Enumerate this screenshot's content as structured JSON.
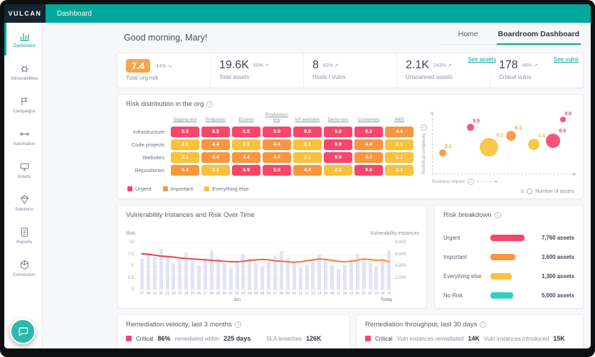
{
  "app": {
    "logo": "VULCAN",
    "topbar_title": "Dashboard"
  },
  "icons": {
    "info": "i",
    "trend_up": "↗",
    "trend_down": "↘"
  },
  "colors": {
    "accent": "#00a79b",
    "urgent": "#f9456b",
    "important": "#f8963d",
    "everything_else": "#f7c23c",
    "no_risk": "#2fd0c2",
    "bar_fill": "#e3e3f5",
    "risk_line_start": "#e8324d",
    "risk_line_end": "#f6903d",
    "kpi_highlight": "#f5a54a"
  },
  "sidebar": {
    "items": [
      {
        "label": "Dashboard",
        "icon": "dashboard-icon",
        "active": true
      },
      {
        "label": "Vulnerabilities",
        "icon": "vulnerabilities-icon",
        "active": false
      },
      {
        "label": "Campaigns",
        "icon": "campaigns-icon",
        "active": false
      },
      {
        "label": "Automation",
        "icon": "automation-icon",
        "active": false
      },
      {
        "label": "Assets",
        "icon": "assets-icon",
        "active": false
      },
      {
        "label": "Solutions",
        "icon": "solutions-icon",
        "active": false
      },
      {
        "label": "Reports",
        "icon": "reports-icon",
        "active": false
      },
      {
        "label": "Connectors",
        "icon": "connectors-icon",
        "active": false
      }
    ]
  },
  "header": {
    "greeting": "Good morning, Mary!",
    "tabs": [
      {
        "label": "Home",
        "active": false
      },
      {
        "label": "Boardroom Dashboard",
        "active": true
      }
    ],
    "links": {
      "see_assets": "See assets",
      "see_vulns": "See vulns"
    }
  },
  "kpis": [
    {
      "value": "7.4",
      "delta": "-14%",
      "trend": "down",
      "label": "Total org risk",
      "highlight": true
    },
    {
      "value": "19.6K",
      "delta": "80%",
      "trend": "up",
      "label": "Total assets",
      "highlight": false
    },
    {
      "value": "8",
      "delta": "60%",
      "trend": "up",
      "label": "Hosts / Vulns",
      "highlight": false
    },
    {
      "value": "2.1K",
      "delta": "343%",
      "trend": "up",
      "label": "Unscanned assets",
      "highlight": false
    },
    {
      "value": "178",
      "delta": "48%",
      "trend": "up",
      "label": "Critical vulns",
      "highlight": false
    }
  ],
  "risk_distribution": {
    "title": "Risk distribution in the org",
    "columns": [
      "Staging env",
      "Endpoints",
      "Ecomm",
      "Production-env",
      "NY websites",
      "Demo-env",
      "Customers",
      "AWS"
    ],
    "rows": [
      "Infrastructure",
      "Code projects",
      "Websites",
      "Repositories"
    ],
    "values": [
      [
        "9.9",
        "9.9",
        "9.5",
        "9.9",
        "9.9",
        "9.9",
        "9.9",
        "4.4"
      ],
      [
        "2.1",
        "4.4",
        "2.1",
        "4.4",
        "2.1",
        "9.9",
        "4.4",
        "2.1"
      ],
      [
        "2.1",
        "4.4",
        "4.4",
        "4.4",
        "2.1",
        "9.9",
        "4.4",
        "2.1"
      ],
      [
        "4.4",
        "2.1",
        "9.9",
        "9.9",
        "4.4",
        "2.1",
        "9.9",
        "2.1"
      ]
    ],
    "levels": [
      [
        "u",
        "u",
        "u",
        "u",
        "u",
        "u",
        "u",
        "i"
      ],
      [
        "e",
        "i",
        "e",
        "i",
        "e",
        "u",
        "i",
        "e"
      ],
      [
        "e",
        "i",
        "i",
        "i",
        "e",
        "u",
        "i",
        "e"
      ],
      [
        "i",
        "e",
        "u",
        "u",
        "i",
        "e",
        "u",
        "e"
      ]
    ],
    "legend": [
      {
        "label": "Urgent",
        "level": "u"
      },
      {
        "label": "Important",
        "level": "i"
      },
      {
        "label": "Everything else",
        "level": "e"
      }
    ]
  },
  "bubble_chart": {
    "xlabel": "Business impact",
    "ylabel": "Technical complexity",
    "legend_label": "Number of assets",
    "bubbles": [
      {
        "label": "2.1",
        "x": 7,
        "y": 35,
        "r": 5,
        "level": "i"
      },
      {
        "label": "9.9",
        "x": 27,
        "y": 78,
        "r": 5,
        "level": "u"
      },
      {
        "label": "8.1",
        "x": 56,
        "y": 64,
        "r": 7,
        "level": "i"
      },
      {
        "label": "6.2",
        "x": 40,
        "y": 44,
        "r": 13,
        "level": "e"
      },
      {
        "label": "4.4",
        "x": 72,
        "y": 49,
        "r": 8,
        "level": "e"
      },
      {
        "label": "8.6",
        "x": 86,
        "y": 56,
        "r": 10,
        "level": "u"
      },
      {
        "label": "9.9",
        "x": 93,
        "y": 92,
        "r": 4,
        "level": "u"
      }
    ]
  },
  "time_chart": {
    "title": "Vulnerability Instances and Risk Over Time",
    "left_axis": {
      "label": "Risk",
      "ticks": [
        "10",
        "7.5",
        "5",
        "2.5",
        "0"
      ],
      "max": 10
    },
    "right_axis": {
      "label": "Vulnerability instances",
      "ticks": [
        "8,000",
        "6,000",
        "4,000",
        "2,000"
      ],
      "max": 8000
    },
    "days": [
      "17",
      "18",
      "19",
      "20",
      "21",
      "22",
      "23",
      "24",
      "25",
      "26",
      "27",
      "28",
      "29",
      "30",
      "31",
      "01",
      "02",
      "03",
      "04",
      "05",
      "06",
      "07",
      "08",
      "09",
      "10",
      "11",
      "12",
      "13",
      "14",
      "15",
      "16",
      "17",
      "18",
      "19",
      "20",
      "21",
      "22",
      "23",
      "24",
      "25"
    ],
    "month_label": "Jun",
    "month_index": 15,
    "today_label": "Today",
    "bars": [
      5200,
      6100,
      5600,
      6900,
      5700,
      4500,
      5100,
      6300,
      4900,
      4100,
      5500,
      6700,
      5300,
      4500,
      3700,
      4900,
      6100,
      5300,
      4500,
      3900,
      4700,
      5700,
      6500,
      5300,
      4500,
      3700,
      4300,
      5100,
      5900,
      5100,
      4300,
      3500,
      4300,
      5300,
      6100,
      5300,
      4500,
      3900,
      5100,
      6700
    ],
    "risk": [
      7.6,
      7.5,
      7.3,
      7.1,
      7.0,
      6.9,
      6.7,
      6.6,
      6.5,
      6.4,
      6.3,
      6.2,
      6.1,
      6.0,
      5.9,
      5.9,
      6.0,
      6.2,
      6.3,
      6.4,
      6.3,
      6.1,
      6.0,
      5.9,
      5.8,
      5.9,
      6.1,
      6.3,
      6.5,
      6.4,
      6.2,
      6.0,
      5.9,
      6.0,
      6.2,
      6.5,
      6.4,
      6.2,
      6.3,
      5.9
    ]
  },
  "risk_breakdown": {
    "title": "Risk breakdown",
    "rows": [
      {
        "label": "Urgent",
        "value": "7,760 assets",
        "num": 7760,
        "bar_pct": 96,
        "level": "u"
      },
      {
        "label": "Important",
        "value": "3,600 assets",
        "num": 3600,
        "bar_pct": 69,
        "level": "i"
      },
      {
        "label": "Everything else",
        "value": "1,300 assets",
        "num": 1300,
        "bar_pct": 60,
        "level": "e"
      },
      {
        "label": "No Risk",
        "value": "5,000 assets",
        "num": 5000,
        "bar_pct": 64,
        "level": "n"
      }
    ]
  },
  "remediation_velocity": {
    "title": "Remediation velocity, last 3 months",
    "severity": "Critical",
    "percent": "86%",
    "within_label": "remediated within",
    "within_value": "225 days",
    "sla_label": "SLA breaches",
    "sla_value": "126K"
  },
  "remediation_throughput": {
    "title": "Remediation throughput, last 30 days",
    "severity": "Critical",
    "remediated_label": "Vuln instances remediated",
    "remediated_value": "14K",
    "introduced_label": "Vuln instances introduced",
    "introduced_value": "15K"
  }
}
